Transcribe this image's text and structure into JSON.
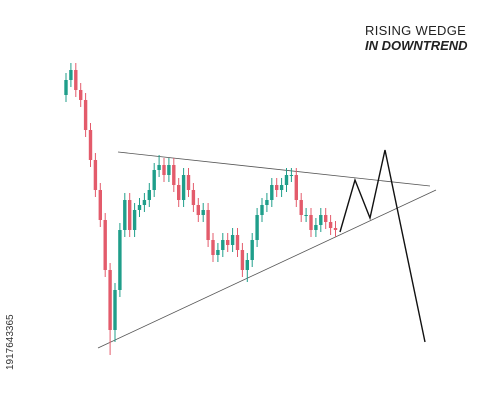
{
  "chart_data": {
    "type": "candlestick",
    "title": "RISING WEDGE",
    "subtitle": "IN DOWNTREND",
    "side_text": "1917643365",
    "up_color": "#1f9e8a",
    "down_color": "#e35b6b",
    "ylim": [
      -10,
      300
    ],
    "open": [
      255,
      270,
      280,
      260,
      250,
      220,
      190,
      160,
      130,
      80,
      20,
      60,
      120,
      150,
      120,
      140,
      145,
      150,
      160,
      180,
      185,
      175,
      185,
      165,
      150,
      175,
      160,
      145,
      135,
      140,
      110,
      95,
      100,
      110,
      105,
      115,
      100,
      80,
      90,
      110,
      135,
      145,
      150,
      165,
      160,
      165,
      175,
      175,
      150,
      135,
      135,
      120,
      125,
      135,
      128,
      122
    ],
    "high": [
      277,
      287,
      287,
      267,
      257,
      227,
      197,
      167,
      137,
      87,
      67,
      127,
      157,
      157,
      147,
      152,
      157,
      167,
      187,
      195,
      192,
      192,
      192,
      172,
      182,
      182,
      167,
      152,
      147,
      147,
      117,
      107,
      117,
      117,
      122,
      122,
      107,
      97,
      117,
      142,
      152,
      157,
      172,
      172,
      172,
      182,
      182,
      182,
      157,
      142,
      142,
      132,
      142,
      142,
      135,
      129
    ],
    "low": [
      248,
      263,
      253,
      243,
      213,
      183,
      153,
      123,
      73,
      -5,
      8,
      53,
      113,
      113,
      113,
      133,
      138,
      143,
      153,
      173,
      168,
      168,
      158,
      143,
      143,
      153,
      138,
      128,
      128,
      103,
      88,
      88,
      93,
      98,
      98,
      93,
      73,
      68,
      83,
      103,
      128,
      138,
      143,
      153,
      153,
      158,
      168,
      143,
      128,
      128,
      113,
      113,
      118,
      121,
      115,
      113
    ],
    "close": [
      270,
      280,
      260,
      250,
      220,
      190,
      160,
      130,
      80,
      20,
      60,
      120,
      150,
      120,
      140,
      145,
      150,
      160,
      180,
      185,
      175,
      185,
      165,
      150,
      175,
      160,
      145,
      135,
      140,
      110,
      95,
      100,
      110,
      105,
      115,
      100,
      80,
      90,
      110,
      135,
      145,
      150,
      165,
      160,
      165,
      175,
      175,
      150,
      135,
      135,
      120,
      125,
      135,
      128,
      122,
      120
    ]
  }
}
